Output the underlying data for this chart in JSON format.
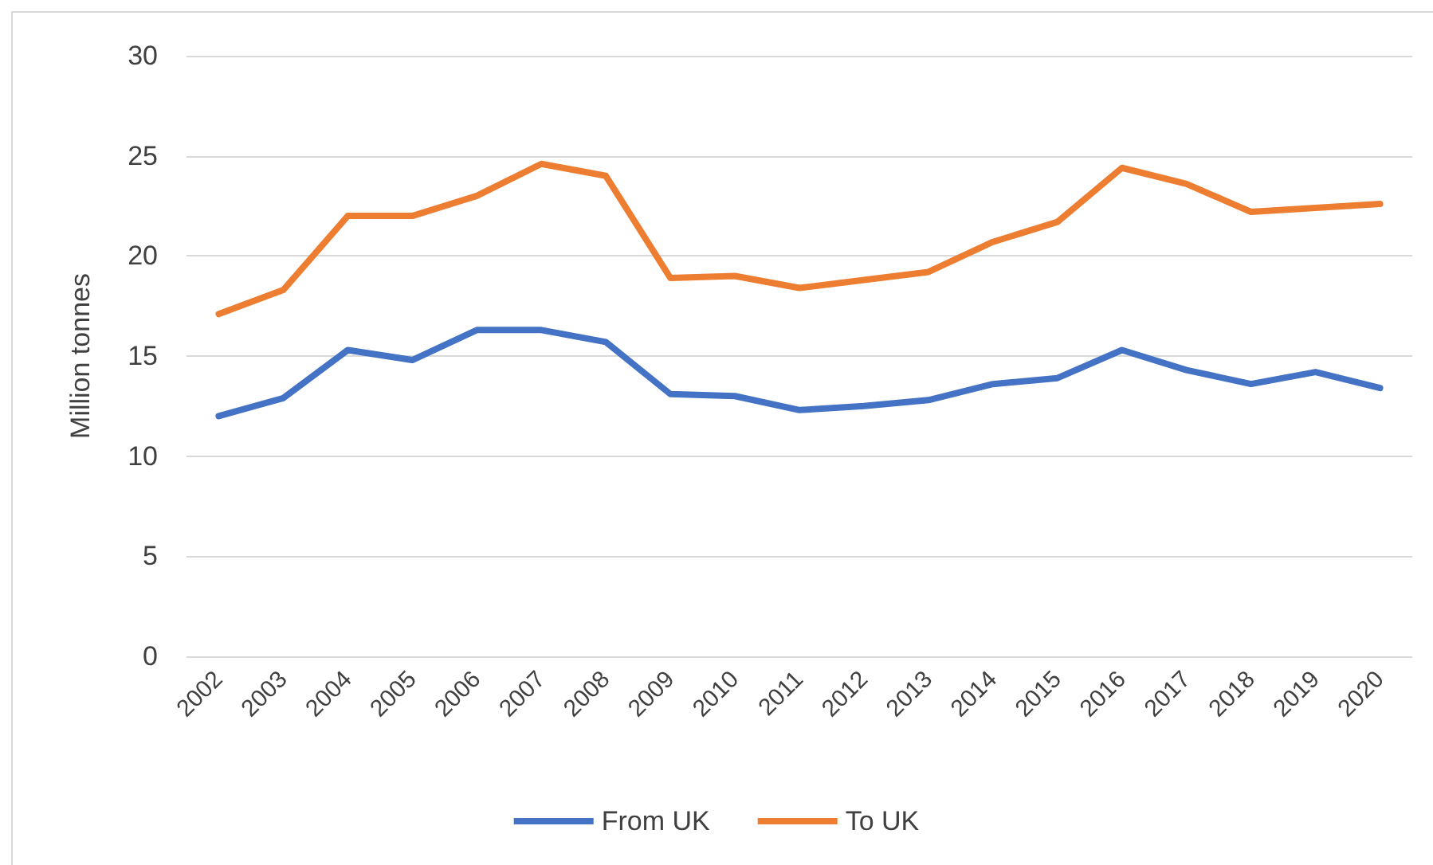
{
  "chart_data": {
    "type": "line",
    "ylabel": "Million tonnes",
    "categories": [
      "2002",
      "2003",
      "2004",
      "2005",
      "2006",
      "2007",
      "2008",
      "2009",
      "2010",
      "2011",
      "2012",
      "2013",
      "2014",
      "2015",
      "2016",
      "2017",
      "2018",
      "2019",
      "2020"
    ],
    "series": [
      {
        "name": "From UK",
        "color": "#4472c4",
        "values": [
          12.0,
          12.9,
          15.3,
          14.8,
          16.3,
          16.3,
          15.7,
          13.1,
          13.0,
          12.3,
          12.5,
          12.8,
          13.6,
          13.9,
          15.3,
          14.3,
          13.6,
          14.2,
          13.4
        ]
      },
      {
        "name": "To UK",
        "color": "#ed7d31",
        "values": [
          17.1,
          18.3,
          22.0,
          22.0,
          23.0,
          24.6,
          24.0,
          18.9,
          19.0,
          18.4,
          18.8,
          19.2,
          20.7,
          21.7,
          24.4,
          23.6,
          22.2,
          22.4,
          22.6
        ]
      }
    ],
    "ylim": [
      0,
      30
    ],
    "yticks": [
      0,
      5,
      10,
      15,
      20,
      25,
      30
    ],
    "grid": "y",
    "legend": "bottom",
    "marker": "none",
    "line_style": "solid"
  }
}
